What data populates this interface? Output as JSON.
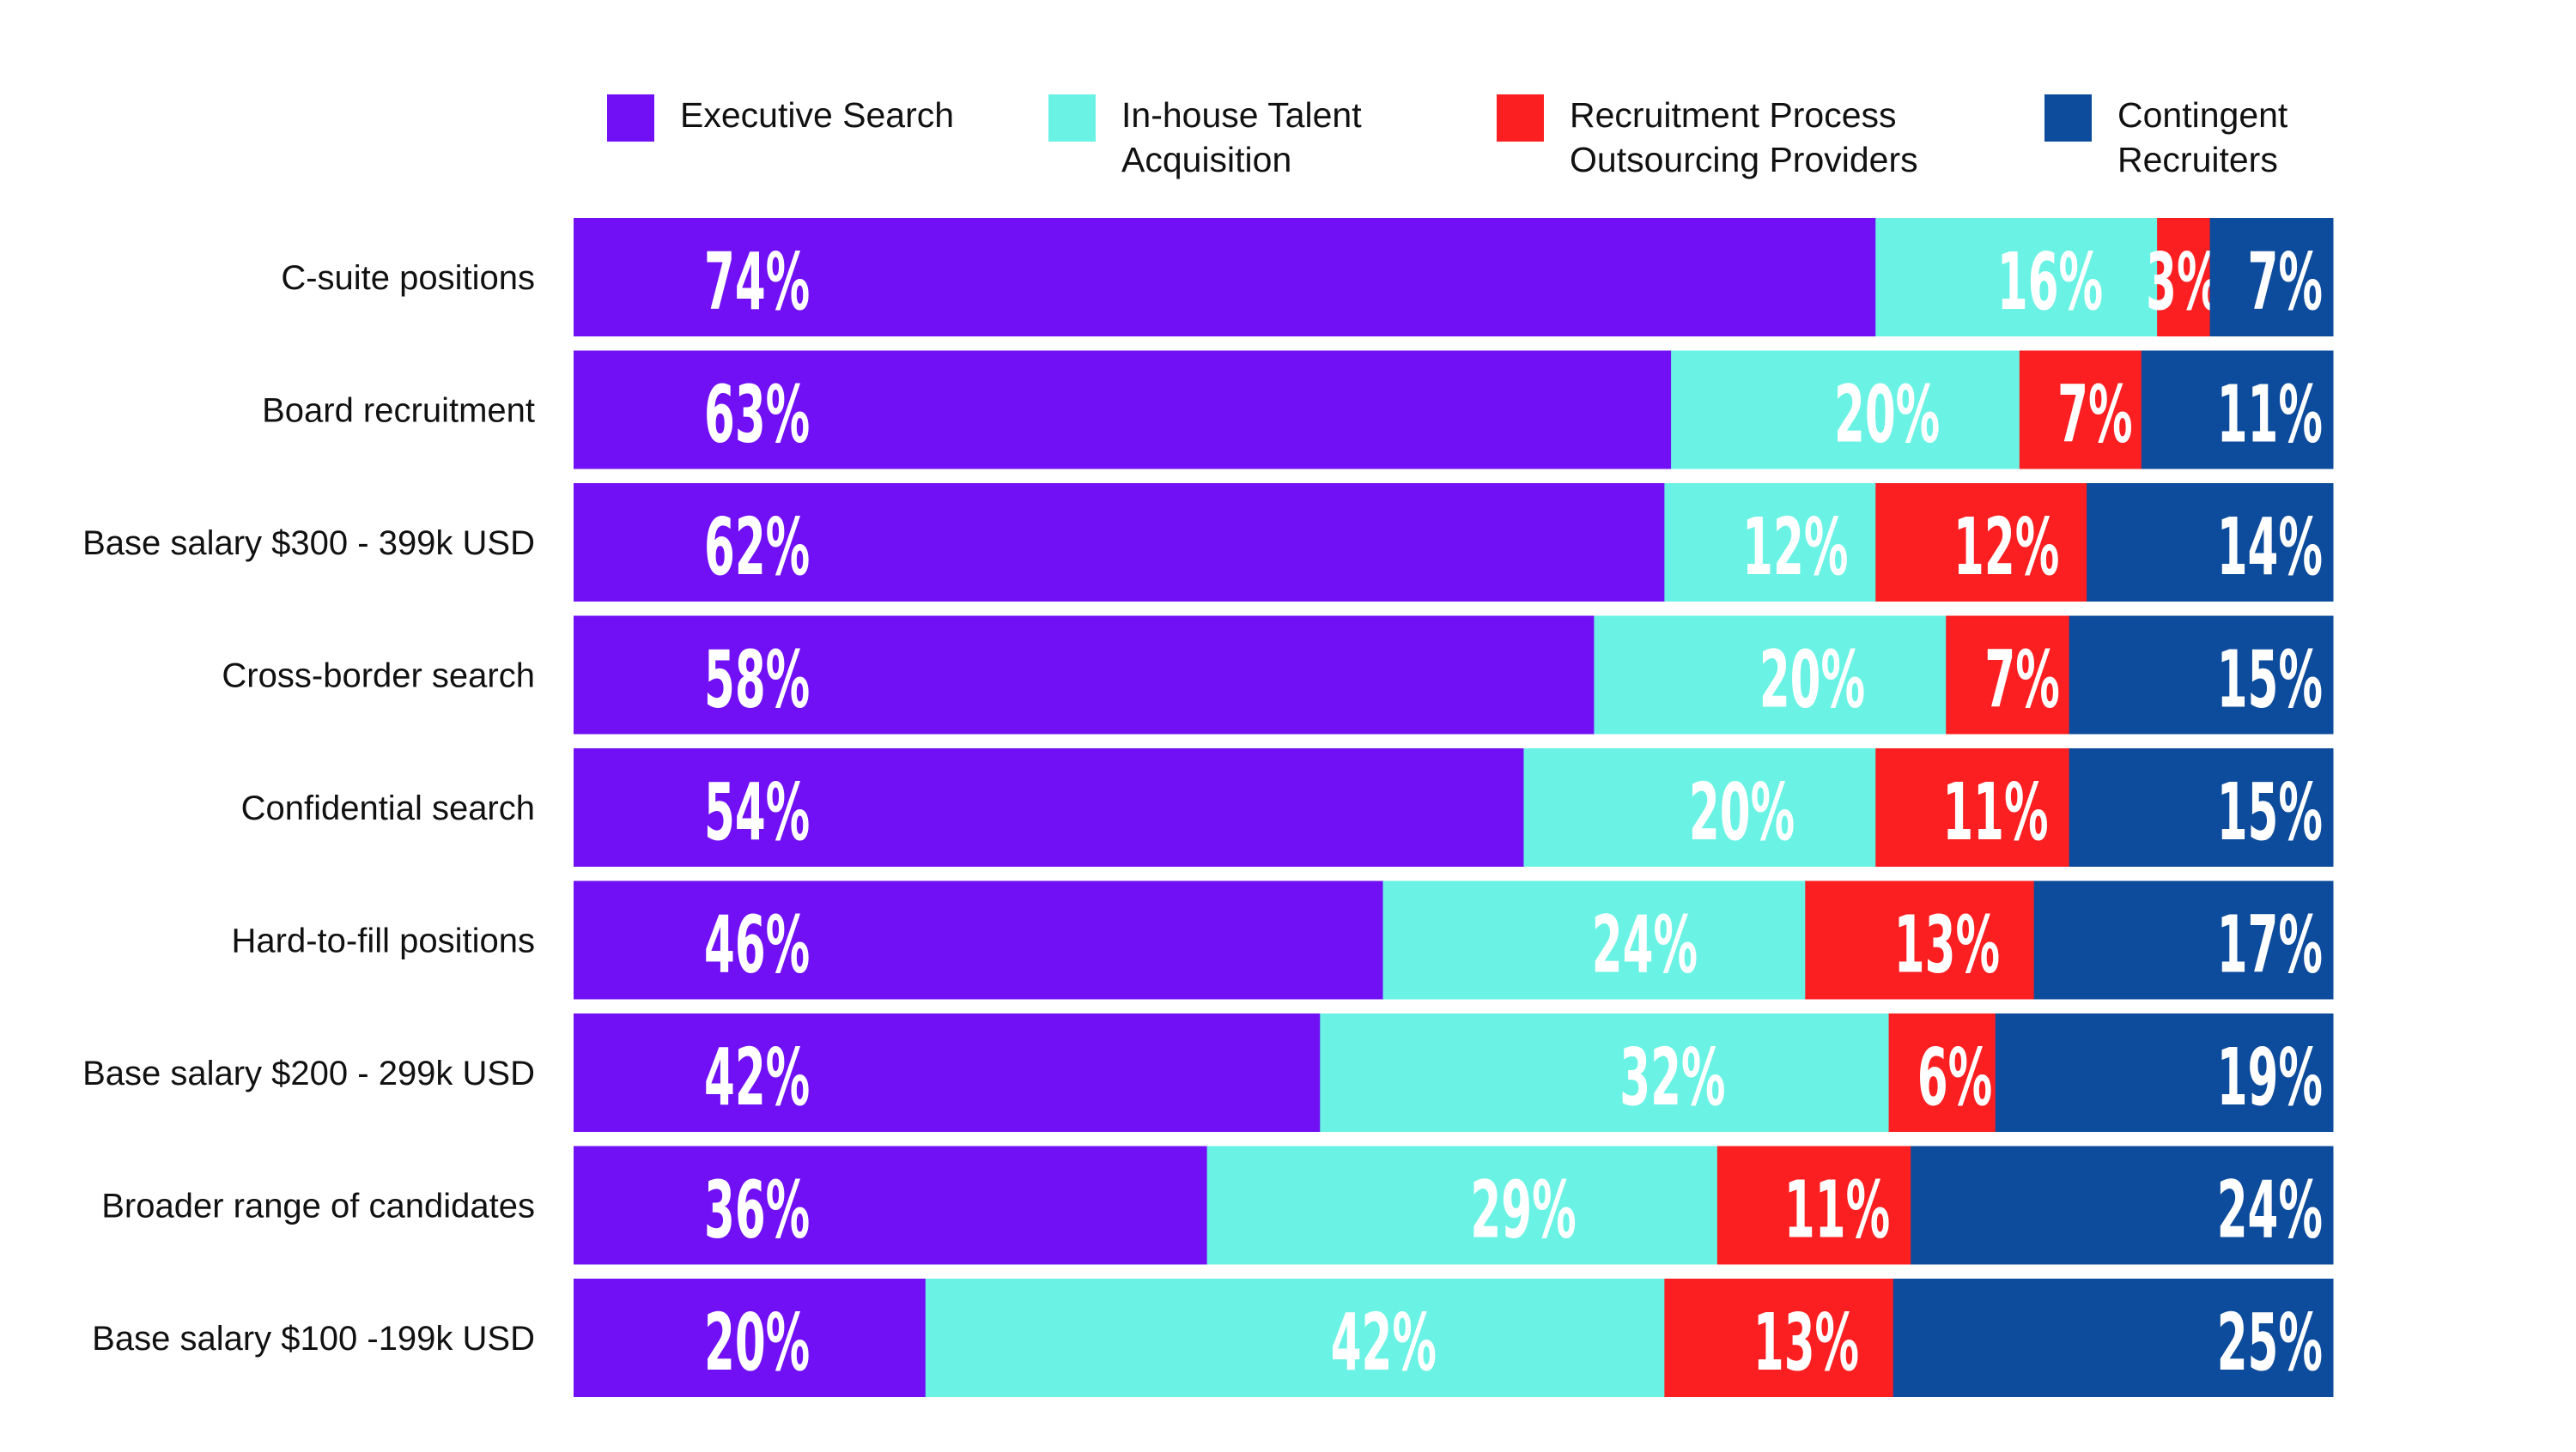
{
  "chart_data": {
    "type": "bar",
    "orientation": "horizontal",
    "stacked": true,
    "normalized_percent": true,
    "legend_position": "top",
    "categories": [
      "C-suite positions",
      "Board recruitment",
      "Base salary $300 - 399k USD",
      "Cross-border search",
      "Confidential search",
      "Hard-to-fill positions",
      "Base salary $200 - 299k USD",
      "Broader range of candidates",
      "Base salary $100 -199k USD"
    ],
    "series": [
      {
        "name": "Executive Search",
        "legend_lines": [
          "Executive Search"
        ],
        "color": "#7110f5",
        "values": [
          74,
          63,
          62,
          58,
          54,
          46,
          42,
          36,
          20
        ]
      },
      {
        "name": "In-house Talent Acquisition",
        "legend_lines": [
          "In-house Talent",
          "Acquisition"
        ],
        "color": "#6af3e4",
        "values": [
          16,
          20,
          12,
          20,
          20,
          24,
          32,
          29,
          42
        ]
      },
      {
        "name": "Recruitment Process Outsourcing Providers",
        "legend_lines": [
          "Recruitment Process",
          "Outsourcing Providers"
        ],
        "color": "#fc1f21",
        "values": [
          3,
          7,
          12,
          7,
          11,
          13,
          6,
          11,
          13
        ]
      },
      {
        "name": "Contingent Recruiters",
        "legend_lines": [
          "Contingent",
          "Recruiters"
        ],
        "color": "#0d4c9c",
        "values": [
          7,
          11,
          14,
          15,
          15,
          17,
          19,
          24,
          25
        ]
      }
    ],
    "value_suffix": "%",
    "xlim": [
      0,
      100
    ],
    "title": "",
    "xlabel": "",
    "ylabel": ""
  }
}
